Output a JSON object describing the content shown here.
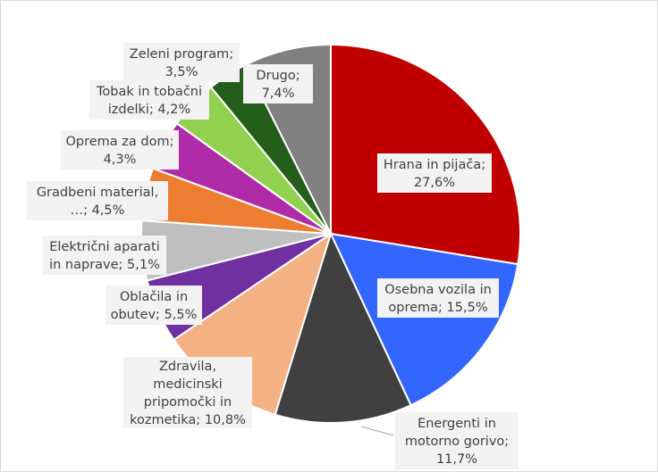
{
  "chart_data": {
    "type": "pie",
    "title": "",
    "slices": [
      {
        "name": "Hrana in pijača",
        "value": 27.6,
        "label": [
          "Hrana in pijača;",
          "27,6%"
        ],
        "color": "#c00000"
      },
      {
        "name": "Osebna vozila in oprema",
        "value": 15.5,
        "label": [
          "Osebna vozila in",
          "oprema; 15,5%"
        ],
        "color": "#3366ff"
      },
      {
        "name": "Energenti in motorno gorivo",
        "value": 11.7,
        "label": [
          "Energenti in",
          "motorno gorivo;",
          "11,7%"
        ],
        "color": "#404040"
      },
      {
        "name": "Zdravila, medicinski pripomočki in kozmetika",
        "value": 10.8,
        "label": [
          "Zdravila,",
          "medicinski",
          "pripomočki in",
          "kozmetika; 10,8%"
        ],
        "color": "#f4b183"
      },
      {
        "name": "Oblačila in obutev",
        "value": 5.5,
        "label": [
          "Oblačila in",
          "obutev; 5,5%"
        ],
        "color": "#7030a0"
      },
      {
        "name": "Električni aparati in naprave",
        "value": 5.1,
        "label": [
          "Električni aparati",
          "in naprave; 5,1%"
        ],
        "color": "#bfbfbf"
      },
      {
        "name": "Gradbeni material, …",
        "value": 4.5,
        "label": [
          "Gradbeni material,",
          "…; 4,5%"
        ],
        "color": "#ed7d31"
      },
      {
        "name": "Oprema za dom",
        "value": 4.3,
        "label": [
          "Oprema za dom;",
          "4,3%"
        ],
        "color": "#b02ba8"
      },
      {
        "name": "Tobak in tobačni izdelki",
        "value": 4.2,
        "label": [
          "Tobak in tobačni",
          "izdelki; 4,2%"
        ],
        "color": "#92d050"
      },
      {
        "name": "Zeleni program",
        "value": 3.5,
        "label": [
          "Zeleni program;",
          "3,5%"
        ],
        "color": "#255e1a"
      },
      {
        "name": "Drugo",
        "value": 7.4,
        "label": [
          "Drugo;",
          "7,4%"
        ],
        "color": "#808080"
      }
    ],
    "legend": "none",
    "data_labels": "category; percent"
  }
}
